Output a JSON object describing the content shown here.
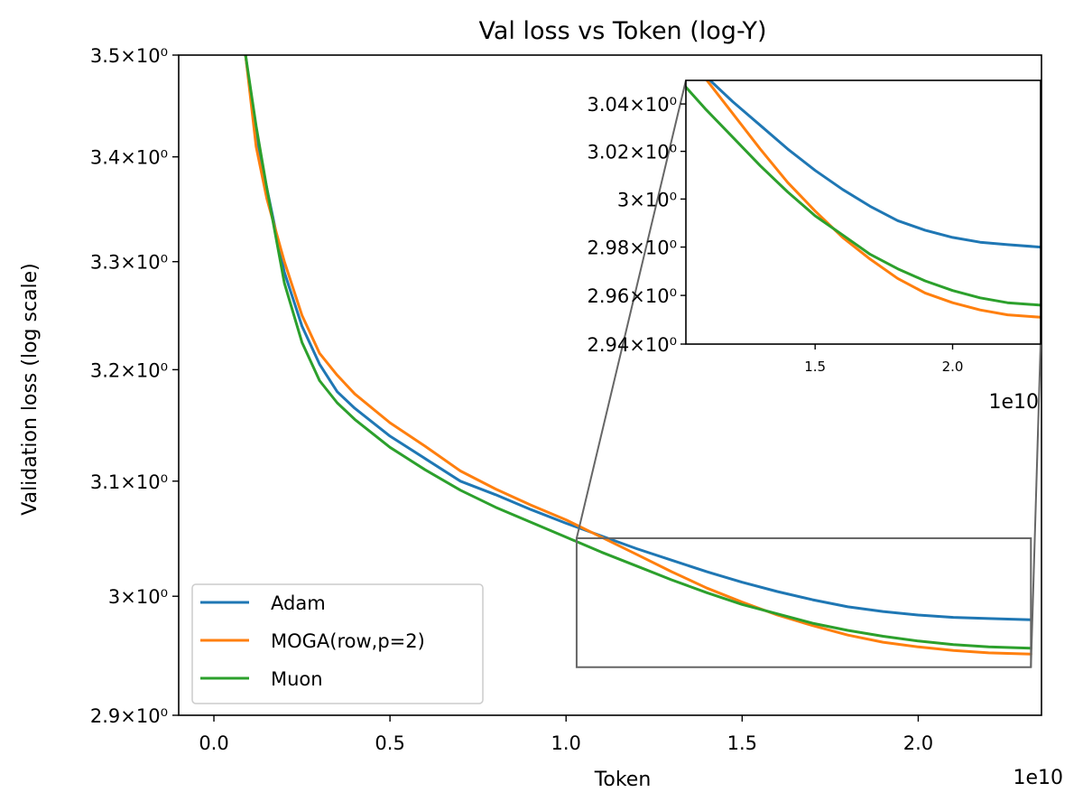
{
  "chart_data": {
    "type": "line",
    "title": "Val loss vs Token (log-Y)",
    "xlabel": "Token",
    "ylabel": "Validation loss (log scale)",
    "x_offset_text": "1e10",
    "y_scale": "log",
    "xlim": [
      -0.1,
      2.35
    ],
    "ylim": [
      2.9,
      3.5
    ],
    "xticks": [
      0.0,
      0.5,
      1.0,
      1.5,
      2.0
    ],
    "xtick_labels": [
      "0.0",
      "0.5",
      "1.0",
      "1.5",
      "2.0"
    ],
    "yticks": [
      2.9,
      3.0,
      3.1,
      3.2,
      3.3,
      3.4,
      3.5
    ],
    "ytick_labels": [
      "2.9×10⁰",
      "3×10⁰",
      "3.1×10⁰",
      "3.2×10⁰",
      "3.3×10⁰",
      "3.4×10⁰",
      "3.5×10⁰"
    ],
    "legend_position": "lower-left",
    "series": [
      {
        "name": "Adam",
        "color": "#1f77b4",
        "x": [
          0.09,
          0.12,
          0.15,
          0.2,
          0.25,
          0.3,
          0.35,
          0.4,
          0.5,
          0.6,
          0.7,
          0.8,
          0.9,
          1.0,
          1.1,
          1.2,
          1.3,
          1.4,
          1.5,
          1.6,
          1.7,
          1.8,
          1.9,
          2.0,
          2.1,
          2.2,
          2.32
        ],
        "y": [
          3.5,
          3.42,
          3.37,
          3.29,
          3.24,
          3.205,
          3.18,
          3.165,
          3.14,
          3.12,
          3.1,
          3.088,
          3.075,
          3.063,
          3.052,
          3.041,
          3.031,
          3.021,
          3.012,
          3.004,
          2.997,
          2.991,
          2.987,
          2.984,
          2.982,
          2.981,
          2.98
        ]
      },
      {
        "name": "MOGA(row,p=2)",
        "color": "#ff7f0e",
        "x": [
          0.09,
          0.12,
          0.15,
          0.2,
          0.25,
          0.3,
          0.35,
          0.4,
          0.5,
          0.6,
          0.7,
          0.8,
          0.9,
          1.0,
          1.1,
          1.2,
          1.3,
          1.4,
          1.5,
          1.6,
          1.7,
          1.8,
          1.9,
          2.0,
          2.1,
          2.2,
          2.32
        ],
        "y": [
          3.5,
          3.41,
          3.36,
          3.3,
          3.25,
          3.215,
          3.195,
          3.178,
          3.152,
          3.131,
          3.109,
          3.093,
          3.079,
          3.066,
          3.051,
          3.036,
          3.021,
          3.007,
          2.995,
          2.984,
          2.975,
          2.967,
          2.961,
          2.957,
          2.954,
          2.952,
          2.951
        ]
      },
      {
        "name": "Muon",
        "color": "#2ca02c",
        "x": [
          0.09,
          0.12,
          0.15,
          0.2,
          0.25,
          0.3,
          0.35,
          0.4,
          0.5,
          0.6,
          0.7,
          0.8,
          0.9,
          1.0,
          1.1,
          1.2,
          1.3,
          1.4,
          1.5,
          1.6,
          1.7,
          1.8,
          1.9,
          2.0,
          2.1,
          2.2,
          2.32
        ],
        "y": [
          3.5,
          3.43,
          3.37,
          3.28,
          3.225,
          3.19,
          3.17,
          3.155,
          3.13,
          3.11,
          3.092,
          3.077,
          3.064,
          3.051,
          3.038,
          3.026,
          3.014,
          3.003,
          2.993,
          2.985,
          2.977,
          2.971,
          2.966,
          2.962,
          2.959,
          2.957,
          2.956
        ]
      }
    ],
    "inset": {
      "xlim": [
        1.03,
        2.32
      ],
      "ylim": [
        2.94,
        3.05
      ],
      "x_offset_text": "1e10",
      "xticks": [
        1.5,
        2.0
      ],
      "xtick_labels": [
        "1.5",
        "2.0"
      ],
      "yticks": [
        2.94,
        2.96,
        2.98,
        3.0,
        3.02,
        3.04
      ],
      "ytick_labels": [
        "2.94×10⁰",
        "2.96×10⁰",
        "2.98×10⁰",
        "3×10⁰",
        "3.02×10⁰",
        "3.04×10⁰"
      ],
      "zoom_region": {
        "x": [
          1.03,
          2.32
        ],
        "y": [
          2.94,
          3.05
        ]
      }
    }
  }
}
